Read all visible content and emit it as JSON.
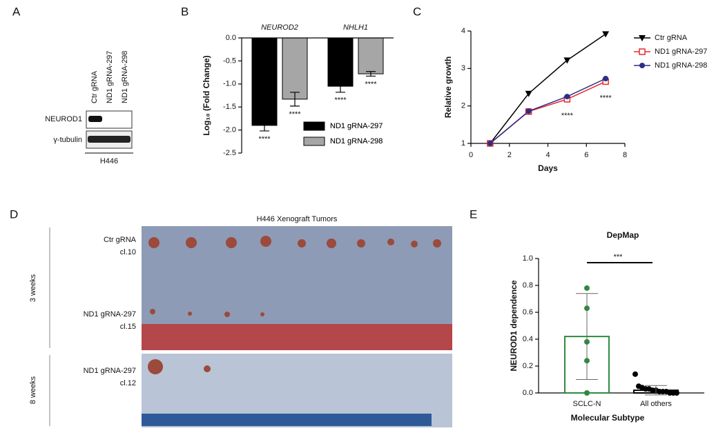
{
  "blot": {
    "panel": "A",
    "lanes": [
      "Ctr gRNA",
      "ND1 gRNA-297",
      "ND1 gRNA-298"
    ],
    "rows": [
      "NEUROD1",
      "γ-tubulin"
    ],
    "cell_line": "H446"
  },
  "chart_data": [
    {
      "type": "bar",
      "panel": "B",
      "ylabel": "Log₁₀ (Fold Change)",
      "categories": [
        "NEUROD2",
        "NHLH1"
      ],
      "series": [
        {
          "name": "ND1 gRNA-297",
          "color": "#000000",
          "values": [
            -1.9,
            -1.05
          ],
          "errors": [
            0.12,
            0.13
          ]
        },
        {
          "name": "ND1 gRNA-298",
          "color": "#a6a6a6",
          "values": [
            -1.33,
            -0.78
          ],
          "errors": [
            0.15,
            0.05
          ]
        }
      ],
      "annotations": [
        [
          "****",
          "****"
        ],
        [
          "****",
          "****"
        ]
      ],
      "ylim": [
        -2.5,
        0
      ],
      "yticks": [
        {
          "value": 0,
          "label": "0.0"
        },
        -0.5,
        {
          "value": -1,
          "label": "-1.0"
        },
        -1.5,
        {
          "value": -2,
          "label": "-2.0"
        },
        -2.5
      ]
    },
    {
      "type": "line",
      "panel": "C",
      "xlabel": "Days",
      "ylabel": "Relative growth",
      "x": [
        1,
        3,
        5,
        7
      ],
      "series": [
        {
          "name": "Ctr gRNA",
          "color": "#000000",
          "marker": "triangle",
          "values": [
            1,
            2.33,
            3.22,
            3.92
          ]
        },
        {
          "name": "ND1 gRNA-297",
          "color": "#e8282b",
          "marker": "square",
          "values": [
            1,
            1.85,
            2.18,
            2.65
          ]
        },
        {
          "name": "ND1 gRNA-298",
          "color": "#2b2f86",
          "marker": "circle",
          "values": [
            1,
            1.86,
            2.25,
            2.73
          ]
        }
      ],
      "annotations": [
        "****",
        "****"
      ],
      "xlim": [
        0,
        8
      ],
      "xticks": [
        0,
        2,
        4,
        6,
        8
      ],
      "ylim": [
        1,
        4
      ],
      "yticks": [
        1,
        2,
        3,
        4
      ]
    },
    {
      "type": "dotbar",
      "panel": "E",
      "title": "DepMap",
      "xlabel": "Molecular Subtype",
      "ylabel": "NEUROD1 dependence",
      "categories": [
        "SCLC-N",
        "All others"
      ],
      "values": [
        0.42,
        0.02
      ],
      "errors": [
        0.32,
        0.035
      ],
      "colors": [
        "#2e8b3e",
        "#000000"
      ],
      "points": [
        [
          0.78,
          0.63,
          0.38,
          0.24,
          0.0
        ],
        [
          0.14,
          0.05,
          0.04,
          0.03,
          0.03,
          0.02,
          0.02,
          0.01,
          0.01,
          0.01,
          0.0,
          0.0,
          0.0
        ]
      ],
      "annotation": "***",
      "ylim": [
        0,
        1
      ],
      "yticks": [
        {
          "value": 0,
          "label": "0.0"
        },
        0.2,
        0.4,
        0.6,
        0.8,
        {
          "value": 1,
          "label": "1.0"
        }
      ]
    }
  ],
  "photo": {
    "panel": "D",
    "title": "H446 Xenograft Tumors",
    "top_labels": [
      [
        "Ctr gRNA",
        "cl.10"
      ],
      [
        "ND1 gRNA-297",
        "cl.15"
      ]
    ],
    "top_time": "3 weeks",
    "bottom_labels": [
      "ND1 gRNA-297",
      "cl.12"
    ],
    "bottom_time": "8 weeks"
  }
}
